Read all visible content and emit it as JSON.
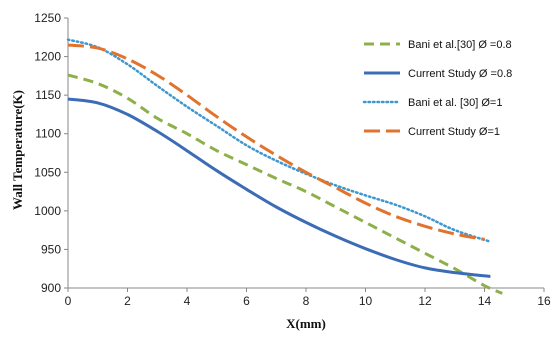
{
  "chart_data": {
    "type": "line",
    "xlabel": "X(mm)",
    "ylabel": "Wall Temperature(K)",
    "xlim": [
      0,
      16
    ],
    "ylim": [
      900,
      1250
    ],
    "xticks": [
      0,
      2,
      4,
      6,
      8,
      10,
      12,
      14,
      16
    ],
    "yticks": [
      900,
      950,
      1000,
      1050,
      1100,
      1150,
      1200,
      1250
    ],
    "xtick_labels": [
      "0",
      "2",
      "4",
      "6",
      "8",
      "10",
      "12",
      "14",
      "16"
    ],
    "ytick_labels": [
      "900",
      "950",
      "1000",
      "1050",
      "1100",
      "1150",
      "1200",
      "1250"
    ],
    "grid": false,
    "legend_position": "right",
    "series": [
      {
        "name": "Bani et al.[30]  Ø =0.8",
        "color": "#8DB04A",
        "style": "dashed",
        "x": [
          0,
          1,
          2,
          3,
          4,
          5,
          6,
          7,
          8,
          9,
          10,
          11,
          12,
          13,
          14,
          14.6
        ],
        "y": [
          1176,
          1165,
          1146,
          1120,
          1100,
          1078,
          1060,
          1042,
          1025,
          1005,
          985,
          965,
          945,
          925,
          903,
          893
        ]
      },
      {
        "name": "Current Study  Ø =0.8",
        "color": "#3B6CB5",
        "style": "solid",
        "x": [
          0,
          1,
          2,
          3,
          4,
          5,
          6,
          7,
          8,
          9,
          10,
          11,
          12,
          13,
          14.2
        ],
        "y": [
          1145,
          1140,
          1125,
          1103,
          1078,
          1052,
          1028,
          1005,
          985,
          967,
          951,
          937,
          926,
          920,
          915
        ]
      },
      {
        "name": "Bani et al. [30]  Ø=1",
        "color": "#3F97D0",
        "style": "dotted",
        "x": [
          0,
          1,
          2,
          3,
          4,
          5,
          6,
          7,
          8,
          9,
          10,
          11,
          12,
          13,
          14.2
        ],
        "y": [
          1222,
          1212,
          1190,
          1162,
          1135,
          1110,
          1085,
          1065,
          1048,
          1033,
          1020,
          1008,
          993,
          975,
          960
        ]
      },
      {
        "name": "Current Study  Ø=1",
        "color": "#E0732D",
        "style": "longdash",
        "x": [
          0,
          1,
          2,
          3,
          4,
          5,
          6,
          7,
          8,
          9,
          10,
          11,
          12,
          13,
          14
        ],
        "y": [
          1215,
          1211,
          1197,
          1176,
          1150,
          1122,
          1096,
          1072,
          1050,
          1030,
          1010,
          993,
          980,
          970,
          963
        ]
      }
    ],
    "legend_entries": [
      "Bani et al.[30]  Ø =0.8",
      "Current Study  Ø =0.8",
      "Bani et al. [30]  Ø=1",
      "Current Study  Ø=1"
    ]
  }
}
